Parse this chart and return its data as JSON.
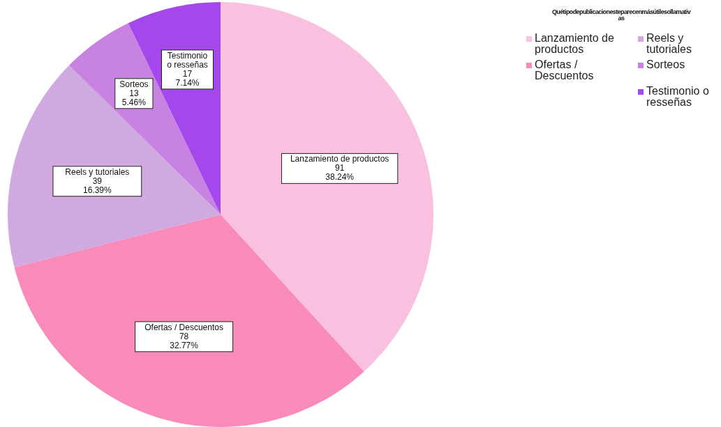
{
  "chart_data": {
    "type": "pie",
    "legend_title": "Quétipodepublicacionesteparecenmásútilesollamativas",
    "categories": [
      "Lanzamiento de productos",
      "Ofertas / Descuentos",
      "Reels y tutoriales",
      "Sorteos",
      "Testimonio o resseñas"
    ],
    "values": [
      91,
      78,
      39,
      13,
      17
    ],
    "colors": [
      "#f9c1df",
      "#f98bbb",
      "#cfa9e0",
      "#c883e2",
      "#a448ec"
    ],
    "value_labels": [
      "91\n38.24%",
      "78\n32.77%",
      "39\n16.39%",
      "13\n5.46%",
      "17\n7.14%"
    ],
    "legend": "top right"
  }
}
